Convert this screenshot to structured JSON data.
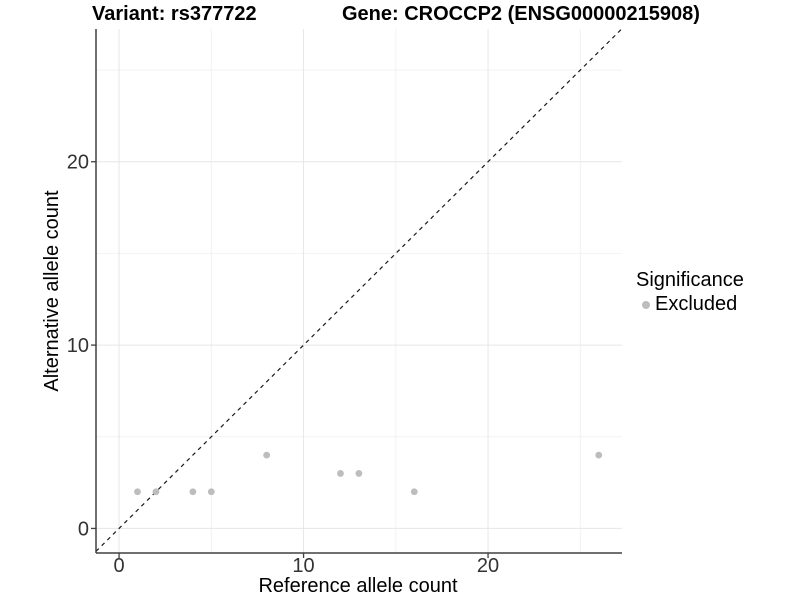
{
  "header": {
    "title_left": "Variant: rs377722",
    "title_right": "Gene: CROCCP2 (ENSG00000215908)"
  },
  "axes": {
    "x_label": "Reference allele count",
    "y_label": "Alternative allele count"
  },
  "legend": {
    "title": "Significance",
    "items": [
      {
        "label": "Excluded",
        "color": "#bdbdbd"
      }
    ]
  },
  "colors": {
    "background": "#ffffff",
    "grid_major": "#e6e6e6",
    "grid_minor": "#f2f2f2",
    "axis_line": "#404040",
    "tick_label": "#333333",
    "point": "#bdbdbd",
    "reference_line": "#1a1a1a"
  },
  "chart_data": {
    "type": "scatter",
    "title": "Variant: rs377722 — Gene: CROCCP2 (ENSG00000215908)",
    "xlabel": "Reference allele count",
    "ylabel": "Alternative allele count",
    "xlim": [
      -1.25,
      27.26
    ],
    "ylim": [
      -1.34,
      27.24
    ],
    "x_breaks": [
      0,
      10,
      20
    ],
    "y_breaks": [
      0,
      10,
      20
    ],
    "x_minor_breaks": [
      5,
      15,
      25
    ],
    "y_minor_breaks": [
      5,
      15,
      25
    ],
    "grid": "major+minor",
    "legend_position": "right",
    "series": [
      {
        "name": "Excluded",
        "color": "#bdbdbd",
        "points": [
          [
            1,
            2
          ],
          [
            2,
            2
          ],
          [
            4,
            2
          ],
          [
            5,
            2
          ],
          [
            8,
            4
          ],
          [
            12,
            3
          ],
          [
            13,
            3
          ],
          [
            16,
            2
          ],
          [
            26,
            4
          ]
        ]
      }
    ],
    "reference_line": {
      "kind": "identity y=x",
      "style": "dashed",
      "color": "#1a1a1a"
    }
  }
}
